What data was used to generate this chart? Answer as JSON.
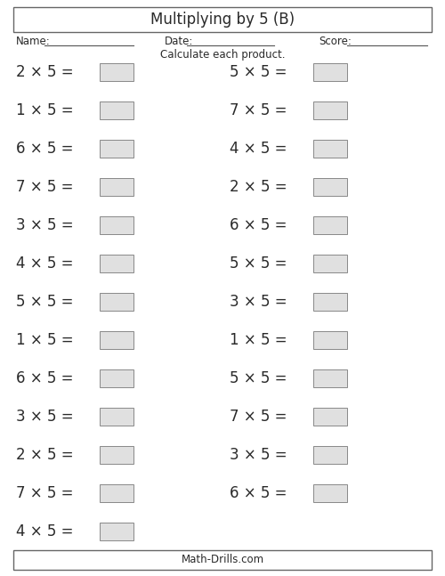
{
  "title": "Multiplying by 5 (B)",
  "footer": "Math-Drills.com",
  "name_label": "Name:",
  "date_label": "Date:",
  "score_label": "Score:",
  "instruction": "Calculate each product.",
  "left_column": [
    "2 × 5 =",
    "1 × 5 =",
    "6 × 5 =",
    "7 × 5 =",
    "3 × 5 =",
    "4 × 5 =",
    "5 × 5 =",
    "1 × 5 =",
    "6 × 5 =",
    "3 × 5 =",
    "2 × 5 =",
    "7 × 5 =",
    "4 × 5 ="
  ],
  "right_column": [
    "5 × 5 =",
    "7 × 5 =",
    "4 × 5 =",
    "2 × 5 =",
    "6 × 5 =",
    "5 × 5 =",
    "3 × 5 =",
    "1 × 5 =",
    "5 × 5 =",
    "7 × 5 =",
    "3 × 5 =",
    "6 × 5 ="
  ],
  "bg_color": "#ffffff",
  "text_color": "#2a2a2a",
  "box_facecolor": "#e0e0e0",
  "box_edgecolor": "#888888",
  "border_color": "#666666",
  "title_fontsize": 12,
  "label_fontsize": 8.5,
  "question_fontsize": 12,
  "instruction_fontsize": 8.5,
  "footer_fontsize": 8.5,
  "fig_width": 5.0,
  "fig_height": 6.47,
  "dpi": 100
}
